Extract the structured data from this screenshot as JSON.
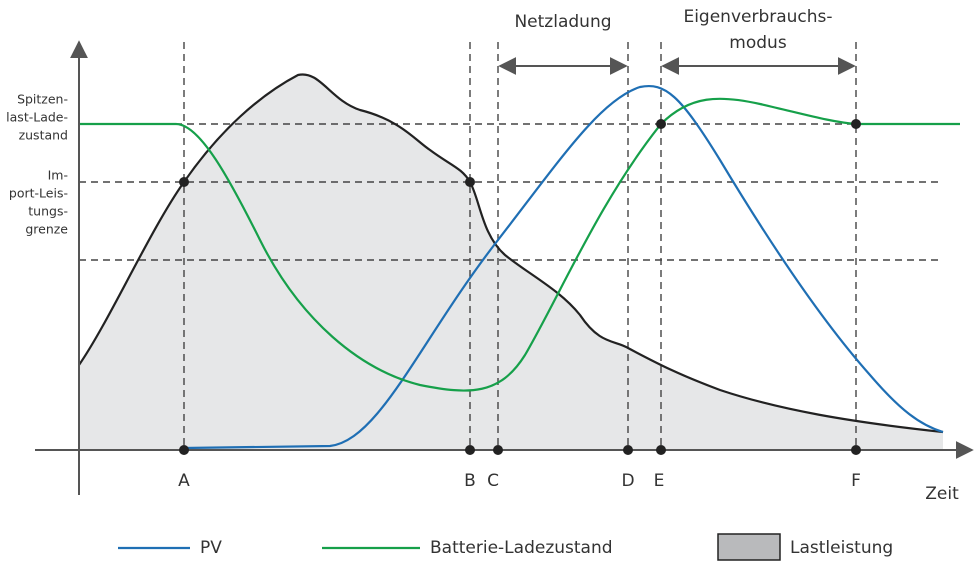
{
  "y_labels": [
    [
      "Spitzen-",
      "last-Lade-",
      "zustand"
    ],
    [
      "Im-",
      "port-Leis-",
      "tungs-",
      "grenze"
    ]
  ],
  "x_markers": [
    "A",
    "B",
    "C",
    "D",
    "E",
    "F"
  ],
  "x_axis_label": "Zeit",
  "annotations": {
    "grid_charging": "Netzladung",
    "self_consumption": [
      "Eigenverbrauchs-",
      "modus"
    ]
  },
  "legend": [
    "PV",
    "Batterie-Ladezustand",
    "Lastleistung"
  ]
}
